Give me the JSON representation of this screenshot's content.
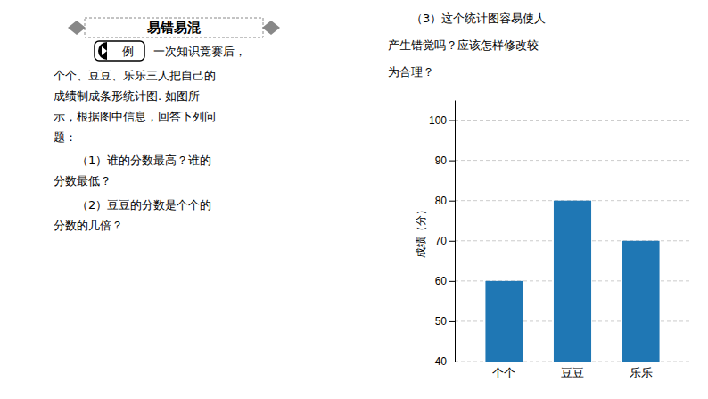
{
  "chart_data": {
    "type": "bar",
    "title": "易错易混",
    "categories": [
      "个个",
      "豆豆",
      "乐乐"
    ],
    "values": [
      60,
      80,
      70
    ],
    "ylabel": "成绩（分）",
    "ylim": [
      40,
      105
    ],
    "yticks": [
      40,
      50,
      60,
      70,
      80,
      90,
      100
    ],
    "grid": true,
    "annotations": [
      "例",
      "一次知识竞赛后，",
      "个个、豆豆、乐乐三人把自己的",
      "成绩制成条形统计图. 如图所",
      "示，根据图中信息，回答下列问",
      "题：",
      "（1）谁的分数最高？谁的",
      "分数最低？",
      "（2）豆豆的分数是个个的",
      "分数的几倍？",
      "（3）这个统计图容易使人",
      "产生错觉吗？应该怎样修改较",
      "为合理？"
    ]
  }
}
